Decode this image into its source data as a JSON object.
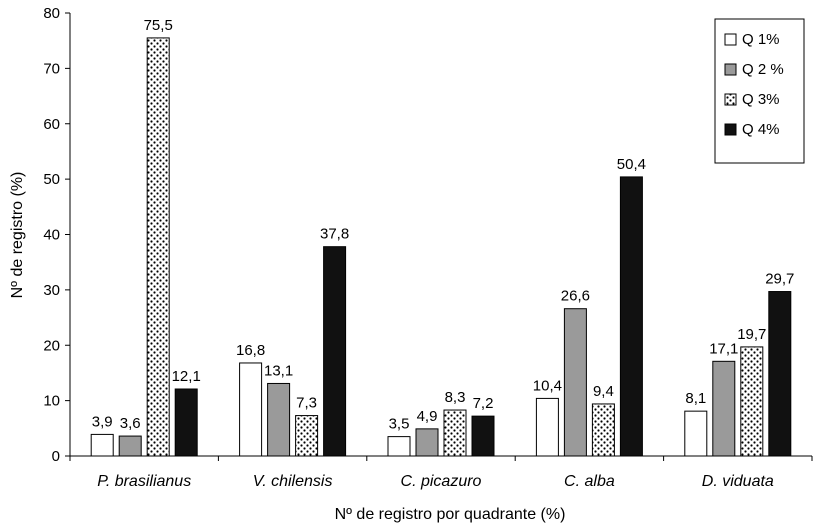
{
  "chart_data": {
    "type": "bar",
    "title": "",
    "xlabel": "Nº de registro por quadrante (%)",
    "ylabel": "Nº de registro (%)",
    "ylim": [
      0,
      80
    ],
    "yticks": [
      0,
      10,
      20,
      30,
      40,
      50,
      60,
      70,
      80
    ],
    "grid": false,
    "legend_position": "top-right",
    "categories": [
      "P. brasilianus",
      "V. chilensis",
      "C. picazuro",
      "C. alba",
      "D. viduata"
    ],
    "series": [
      {
        "name": "Q 1%",
        "fill": "#ffffff",
        "values": [
          3.9,
          16.8,
          3.5,
          10.4,
          8.1
        ],
        "labels": [
          "3,9",
          "16,8",
          "3,5",
          "10,4",
          "8,1"
        ]
      },
      {
        "name": "Q 2 %",
        "fill": "#9a9a9a",
        "values": [
          3.6,
          13.1,
          4.9,
          26.6,
          17.1
        ],
        "labels": [
          "3,6",
          "13,1",
          "4,9",
          "26,6",
          "17,1"
        ]
      },
      {
        "name": "Q 3%",
        "fill": "dots",
        "values": [
          75.5,
          7.3,
          8.3,
          9.4,
          19.7
        ],
        "labels": [
          "75,5",
          "7,3",
          "8,3",
          "9,4",
          "19,7"
        ]
      },
      {
        "name": "Q 4%",
        "fill": "#111111",
        "values": [
          12.1,
          37.8,
          7.2,
          50.4,
          29.7
        ],
        "labels": [
          "12,1",
          "37,8",
          "7,2",
          "50,4",
          "29,7"
        ]
      }
    ]
  }
}
